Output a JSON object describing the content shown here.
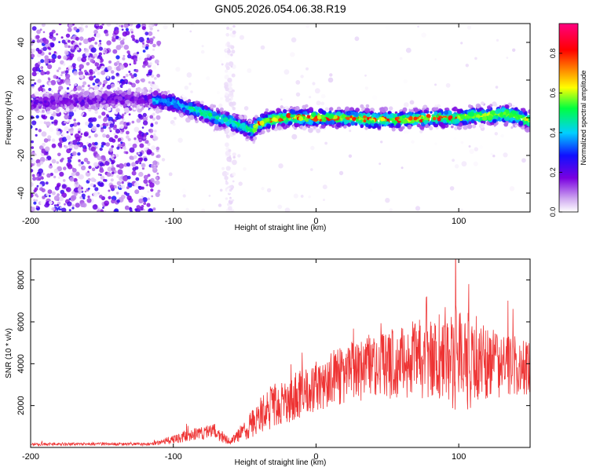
{
  "title": "GN05.2026.054.06.38.R19",
  "chart_data": [
    {
      "type": "heatmap",
      "panel": "top",
      "xlabel": "Height of straight line (km)",
      "ylabel": "Frequency (Hz)",
      "xlim": [
        -200,
        150
      ],
      "ylim": [
        -50,
        50
      ],
      "xticks": [
        -200,
        -100,
        0,
        100
      ],
      "xtick_labels": [
        "-200",
        "-100",
        "0",
        "100"
      ],
      "yticks": [
        -40,
        -20,
        0,
        20,
        40
      ],
      "ytick_labels": [
        "-40",
        "-20",
        "0",
        "20",
        "40"
      ],
      "ridge": {
        "x": [
          -200,
          -160,
          -140,
          -120,
          -110,
          -100,
          -90,
          -80,
          -70,
          -60,
          -50,
          -45,
          -40,
          -30,
          -20,
          -10,
          0,
          20,
          40,
          60,
          80,
          100,
          110,
          120,
          130,
          140,
          150
        ],
        "frequency": [
          8,
          9,
          10,
          10,
          9,
          8,
          5,
          3,
          0,
          -2,
          -5,
          -7,
          -3,
          -1,
          0,
          0,
          0,
          0,
          -1,
          -1,
          0,
          0,
          1,
          1,
          2,
          1,
          -2
        ]
      },
      "colorbar": {
        "label": "Normalized spectral amplitude",
        "range": [
          0.0,
          0.95
        ],
        "ticks": [
          0.0,
          0.2,
          0.4,
          0.6,
          0.8
        ],
        "tick_labels": [
          "0.0",
          "0.2",
          "0.4",
          "0.6",
          "0.8"
        ],
        "colors": [
          "#ffffff",
          "#cfa8f0",
          "#7a00e0",
          "#1010ff",
          "#00d0ff",
          "#00ff40",
          "#ffff00",
          "#ff8000",
          "#ff0000",
          "#ff0080"
        ]
      }
    },
    {
      "type": "line",
      "panel": "bottom",
      "xlabel": "Height of straight line (km)",
      "ylabel": "SNR (10 * v/v)",
      "xlim": [
        -200,
        150
      ],
      "ylim": [
        0,
        9000
      ],
      "xticks": [
        -200,
        -100,
        0,
        100
      ],
      "xtick_labels": [
        "-200",
        "-100",
        "0",
        "100"
      ],
      "yticks": [
        2000,
        4000,
        6000,
        8000
      ],
      "ytick_labels": [
        "2000",
        "4000",
        "6000",
        "8000"
      ],
      "series": [
        {
          "name": "SNR",
          "color": "#ee3333",
          "x": [
            -200,
            -160,
            -130,
            -115,
            -100,
            -90,
            -80,
            -70,
            -65,
            -60,
            -55,
            -50,
            -45,
            -40,
            -35,
            -30,
            -20,
            -10,
            0,
            10,
            20,
            30,
            40,
            50,
            60,
            70,
            80,
            90,
            100,
            110,
            120,
            130,
            140,
            150
          ],
          "mean": [
            150,
            170,
            150,
            160,
            400,
            550,
            700,
            750,
            450,
            300,
            500,
            850,
            1100,
            1500,
            1800,
            2000,
            2200,
            2600,
            2900,
            3200,
            3500,
            3700,
            3900,
            4000,
            4100,
            4200,
            4250,
            4300,
            4300,
            4200,
            4100,
            4000,
            3900,
            3800
          ],
          "spread": [
            70,
            70,
            70,
            70,
            200,
            280,
            330,
            400,
            250,
            150,
            350,
            500,
            650,
            850,
            1000,
            1100,
            1100,
            1200,
            1200,
            1300,
            1400,
            1500,
            1600,
            1700,
            1800,
            1900,
            2200,
            2400,
            2600,
            2400,
            1800,
            1600,
            1400,
            1300
          ]
        }
      ]
    }
  ]
}
